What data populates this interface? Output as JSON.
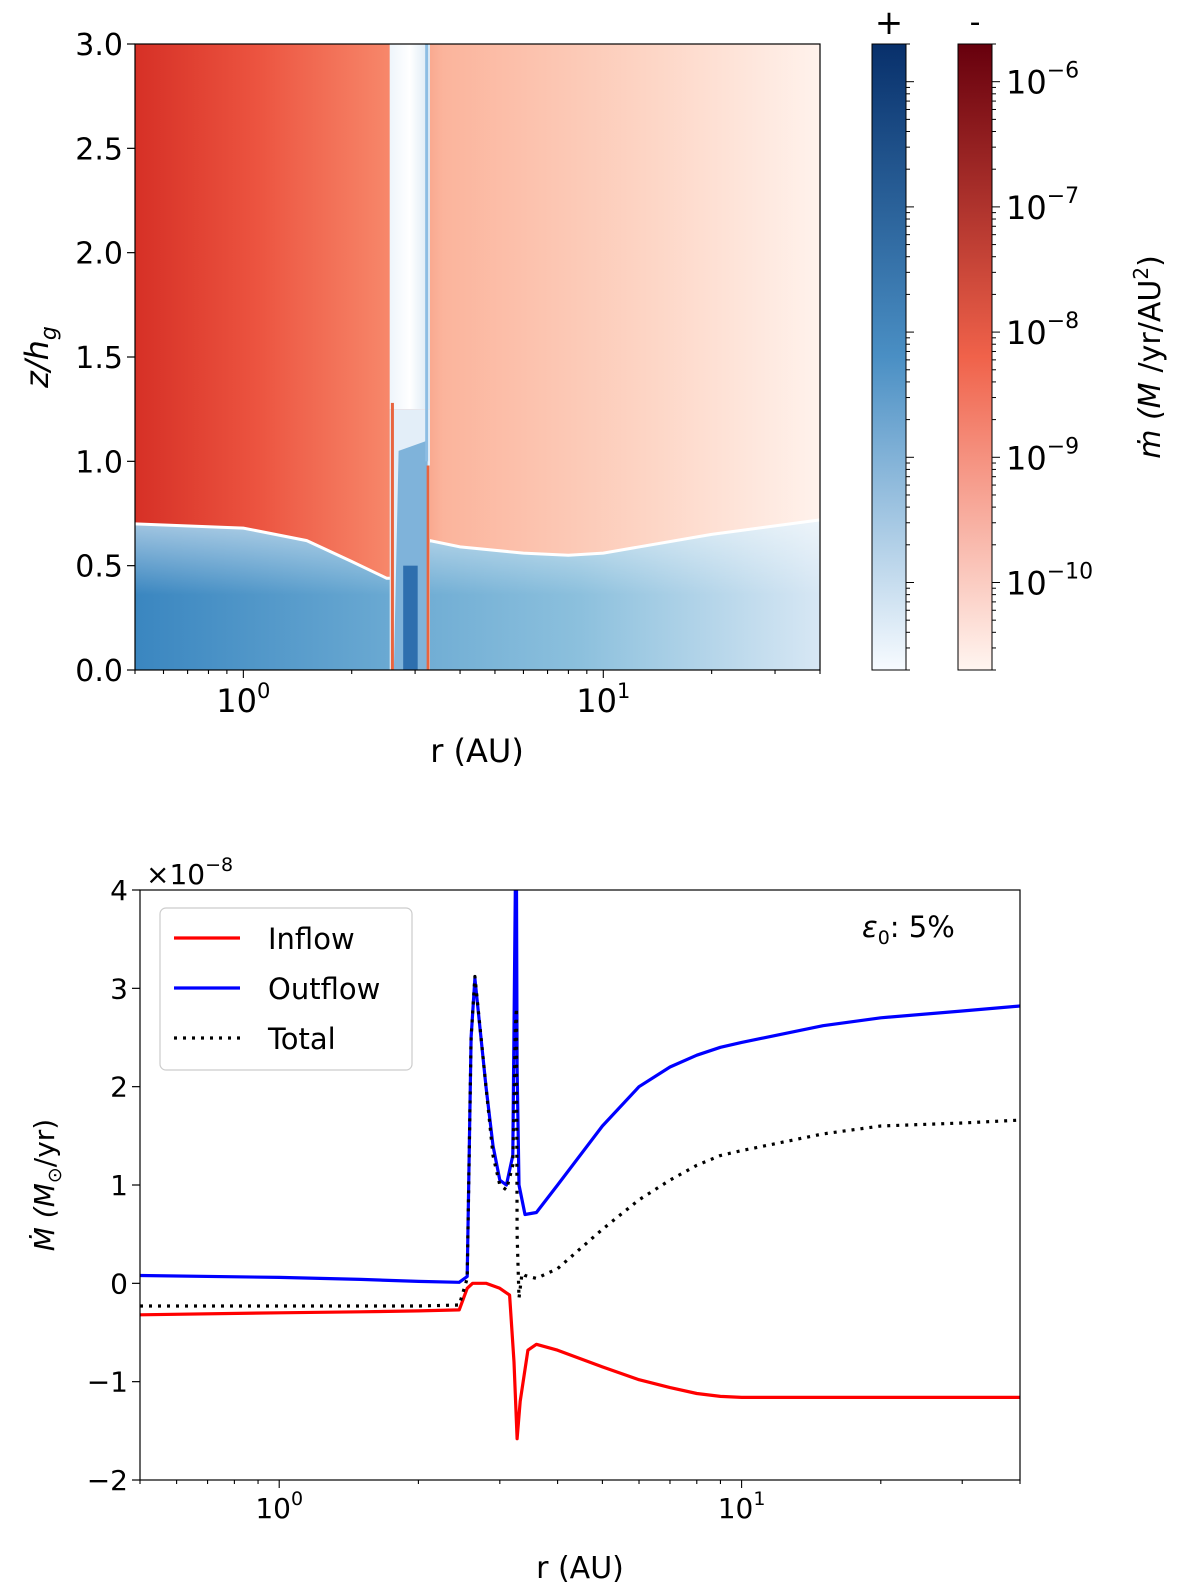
{
  "chart_data": [
    {
      "type": "heatmap",
      "title": "",
      "xlabel": "r (AU)",
      "ylabel": "z/h",
      "ylabel_sub": "g",
      "xscale": "log",
      "xlim": [
        0.5,
        40
      ],
      "ylim": [
        0.0,
        3.0
      ],
      "x_ticks": [
        {
          "value": 1,
          "label": "10",
          "exp": "0"
        },
        {
          "value": 10,
          "label": "10",
          "exp": "1"
        }
      ],
      "y_ticks": [
        {
          "value": 0.0,
          "label": "0.0"
        },
        {
          "value": 0.5,
          "label": "0.5"
        },
        {
          "value": 1.0,
          "label": "1.0"
        },
        {
          "value": 1.5,
          "label": "1.5"
        },
        {
          "value": 2.0,
          "label": "2.0"
        },
        {
          "value": 2.5,
          "label": "2.5"
        },
        {
          "value": 3.0,
          "label": "3.0"
        }
      ],
      "sign_boundary": {
        "description": "outflow (+, blue) below, inflow (-, red) above",
        "r": [
          0.5,
          1.0,
          1.5,
          2.0,
          2.5,
          2.6,
          3.3,
          4,
          6,
          8,
          10,
          20,
          40
        ],
        "z": [
          0.7,
          0.68,
          0.62,
          0.52,
          0.44,
          0.44,
          0.62,
          0.59,
          0.56,
          0.55,
          0.56,
          0.65,
          0.72
        ]
      },
      "colorbars": [
        {
          "label": "+",
          "sign": "positive",
          "cmap": "Blues",
          "colors": [
            "#f7fbff",
            "#08306b"
          ]
        },
        {
          "label": "-",
          "sign": "negative",
          "cmap": "Reds",
          "colors": [
            "#fff5f0",
            "#67000d"
          ],
          "ticks": [
            {
              "label": "10",
              "exp": "−6",
              "value": 1e-06
            },
            {
              "label": "10",
              "exp": "−7",
              "value": 1e-07
            },
            {
              "label": "10",
              "exp": "−8",
              "value": 1e-08
            },
            {
              "label": "10",
              "exp": "−9",
              "value": 1e-09
            },
            {
              "label": "10",
              "exp": "−10",
              "value": 1e-10
            }
          ],
          "range": [
            2e-11,
            2e-06
          ]
        }
      ],
      "colorbar_title": {
        "prefix": "ṁ (",
        "m": "M",
        "rest": "/yr/AU",
        "sup": "2",
        "suffix": ")"
      }
    },
    {
      "type": "line",
      "xlabel": "r (AU)",
      "ylabel": "Ṁ (M",
      "ylabel_sub": "⊙",
      "ylabel_tail": "/yr)",
      "xscale": "log",
      "xlim": [
        0.5,
        40
      ],
      "ylim": [
        -2,
        4
      ],
      "multiplier": {
        "text": "×10",
        "exp": "−8"
      },
      "annotation": {
        "symbol": "ε",
        "sub": "0",
        "text": ": 5%"
      },
      "x_ticks": [
        {
          "value": 1,
          "label": "10",
          "exp": "0"
        },
        {
          "value": 10,
          "label": "10",
          "exp": "1"
        }
      ],
      "y_ticks": [
        {
          "value": -2,
          "label": "−2"
        },
        {
          "value": -1,
          "label": "−1"
        },
        {
          "value": 0,
          "label": "0"
        },
        {
          "value": 1,
          "label": "1"
        },
        {
          "value": 2,
          "label": "2"
        },
        {
          "value": 3,
          "label": "3"
        },
        {
          "value": 4,
          "label": "4"
        }
      ],
      "legend": {
        "position": "top-left"
      },
      "series": [
        {
          "name": "Inflow",
          "color": "#ff0000",
          "dash": "",
          "x": [
            0.5,
            1.0,
            1.5,
            2.0,
            2.45,
            2.55,
            2.62,
            2.8,
            3.0,
            3.15,
            3.22,
            3.27,
            3.32,
            3.45,
            3.6,
            4.0,
            5.0,
            6.0,
            7.0,
            8.0,
            9.0,
            10.0,
            15.0,
            20.0,
            30.0,
            40.0
          ],
          "y": [
            -0.32,
            -0.3,
            -0.29,
            -0.28,
            -0.27,
            -0.05,
            0.0,
            0.0,
            -0.05,
            -0.12,
            -0.8,
            -1.58,
            -1.2,
            -0.68,
            -0.62,
            -0.68,
            -0.85,
            -0.98,
            -1.06,
            -1.12,
            -1.15,
            -1.16,
            -1.16,
            -1.16,
            -1.16,
            -1.16
          ]
        },
        {
          "name": "Outflow",
          "color": "#0000ff",
          "dash": "",
          "x": [
            0.5,
            1.0,
            1.5,
            2.0,
            2.45,
            2.55,
            2.6,
            2.65,
            2.8,
            2.9,
            3.0,
            3.1,
            3.2,
            3.24,
            3.26,
            3.27,
            3.3,
            3.4,
            3.6,
            4.0,
            5.0,
            6.0,
            7.0,
            8.0,
            9.0,
            10.0,
            15.0,
            20.0,
            30.0,
            40.0
          ],
          "y": [
            0.08,
            0.06,
            0.04,
            0.02,
            0.01,
            0.07,
            2.5,
            3.1,
            2.0,
            1.4,
            1.05,
            1.0,
            1.3,
            4.0,
            4.0,
            2.2,
            1.0,
            0.7,
            0.72,
            1.0,
            1.6,
            2.0,
            2.2,
            2.32,
            2.4,
            2.45,
            2.62,
            2.7,
            2.77,
            2.82
          ]
        },
        {
          "name": "Total",
          "color": "#000000",
          "dash": "3,6",
          "x": [
            0.5,
            1.0,
            1.5,
            2.0,
            2.45,
            2.55,
            2.6,
            2.65,
            2.8,
            2.9,
            3.0,
            3.1,
            3.2,
            3.24,
            3.26,
            3.27,
            3.3,
            3.35,
            3.4,
            3.6,
            4.0,
            5.0,
            6.0,
            7.0,
            8.0,
            9.0,
            10.0,
            15.0,
            20.0,
            30.0,
            40.0
          ],
          "y": [
            -0.23,
            -0.23,
            -0.23,
            -0.23,
            -0.22,
            0.05,
            2.5,
            3.12,
            2.0,
            1.3,
            1.0,
            0.95,
            1.2,
            2.6,
            2.8,
            0.5,
            -0.15,
            0.1,
            0.08,
            0.05,
            0.15,
            0.55,
            0.85,
            1.05,
            1.2,
            1.3,
            1.35,
            1.52,
            1.6,
            1.63,
            1.66
          ]
        }
      ]
    }
  ]
}
